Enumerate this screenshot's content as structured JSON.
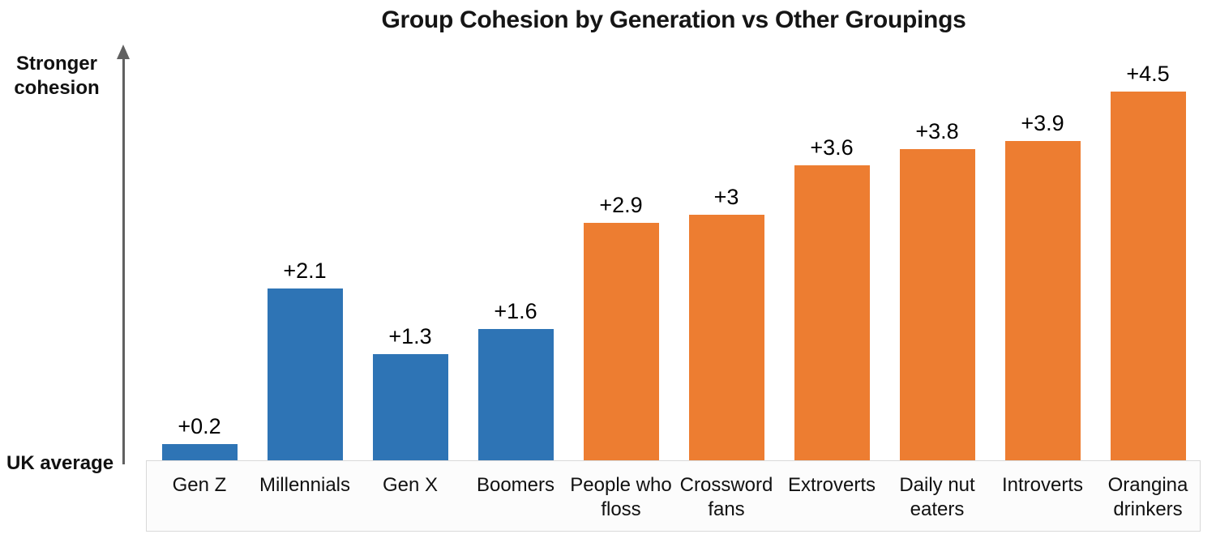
{
  "chart_data": {
    "type": "bar",
    "title": "Group Cohesion by Generation vs Other Groupings",
    "xlabel": "",
    "ylabel": "",
    "grid": false,
    "legend": false,
    "ylim": [
      0,
      4.7
    ],
    "y_axis": {
      "top_label": "Stronger cohesion",
      "baseline_label": "UK average",
      "arrow_color": "#606060"
    },
    "group_colors": {
      "generation": "#2E74B5",
      "other": "#ED7D31"
    },
    "categories": [
      "Gen Z",
      "Millennials",
      "Gen X",
      "Boomers",
      "People who floss",
      "Crossword fans",
      "Extroverts",
      "Daily nut eaters",
      "Introverts",
      "Orangina drinkers"
    ],
    "values": [
      0.2,
      2.1,
      1.3,
      1.6,
      2.9,
      3,
      3.6,
      3.8,
      3.9,
      4.5
    ],
    "bars": [
      {
        "category": "Gen Z",
        "value": 0.2,
        "label": "+0.2",
        "group": "generation"
      },
      {
        "category": "Millennials",
        "value": 2.1,
        "label": "+2.1",
        "group": "generation"
      },
      {
        "category": "Gen X",
        "value": 1.3,
        "label": "+1.3",
        "group": "generation"
      },
      {
        "category": "Boomers",
        "value": 1.6,
        "label": "+1.6",
        "group": "generation"
      },
      {
        "category": "People who floss",
        "value": 2.9,
        "label": "+2.9",
        "group": "other"
      },
      {
        "category": "Crossword fans",
        "value": 3,
        "label": "+3",
        "group": "other"
      },
      {
        "category": "Extroverts",
        "value": 3.6,
        "label": "+3.6",
        "group": "other"
      },
      {
        "category": "Daily nut eaters",
        "value": 3.8,
        "label": "+3.8",
        "group": "other"
      },
      {
        "category": "Introverts",
        "value": 3.9,
        "label": "+3.9",
        "group": "other"
      },
      {
        "category": "Orangina drinkers",
        "value": 4.5,
        "label": "+4.5",
        "group": "other"
      }
    ]
  }
}
